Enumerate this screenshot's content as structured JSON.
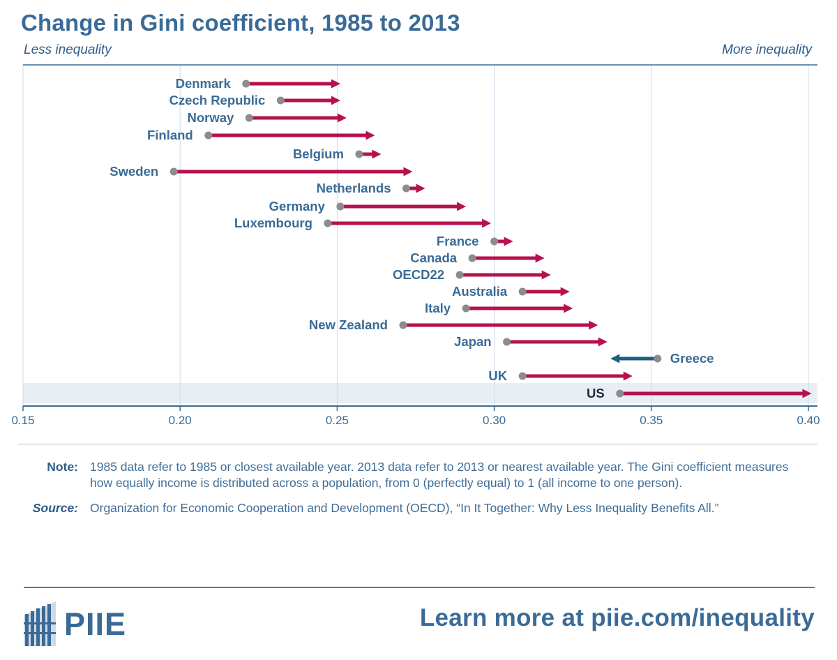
{
  "header": {
    "title": "Change in Gini coefficient, 1985 to 2013",
    "left_label": "Less inequality",
    "right_label": "More inequality"
  },
  "chart_data": {
    "type": "dumbbell-arrow",
    "title": "Change in Gini coefficient, 1985 to 2013",
    "xlabel": "",
    "ylabel": "",
    "xlim": [
      0.15,
      0.4
    ],
    "xticks": [
      0.15,
      0.2,
      0.25,
      0.3,
      0.35,
      0.4
    ],
    "xtick_labels": [
      "0.15",
      "0.20",
      "0.25",
      "0.30",
      "0.35",
      "0.40"
    ],
    "grid": true,
    "series": [
      {
        "name": "Denmark",
        "start_1985": 0.221,
        "end_2013": 0.251,
        "label_side": "left",
        "highlight": false
      },
      {
        "name": "Czech Republic",
        "start_1985": 0.232,
        "end_2013": 0.251,
        "label_side": "left",
        "highlight": false
      },
      {
        "name": "Norway",
        "start_1985": 0.222,
        "end_2013": 0.253,
        "label_side": "left",
        "highlight": false
      },
      {
        "name": "Finland",
        "start_1985": 0.209,
        "end_2013": 0.262,
        "label_side": "left",
        "highlight": false
      },
      {
        "name": "Belgium",
        "start_1985": 0.257,
        "end_2013": 0.264,
        "label_side": "left",
        "highlight": false
      },
      {
        "name": "Sweden",
        "start_1985": 0.198,
        "end_2013": 0.274,
        "label_side": "left",
        "highlight": false
      },
      {
        "name": "Netherlands",
        "start_1985": 0.272,
        "end_2013": 0.278,
        "label_side": "left",
        "highlight": false
      },
      {
        "name": "Germany",
        "start_1985": 0.251,
        "end_2013": 0.291,
        "label_side": "left",
        "highlight": false
      },
      {
        "name": "Luxembourg",
        "start_1985": 0.247,
        "end_2013": 0.299,
        "label_side": "left",
        "highlight": false
      },
      {
        "name": "France",
        "start_1985": 0.3,
        "end_2013": 0.306,
        "label_side": "left",
        "highlight": false
      },
      {
        "name": "Canada",
        "start_1985": 0.293,
        "end_2013": 0.316,
        "label_side": "left",
        "highlight": false
      },
      {
        "name": "OECD22",
        "start_1985": 0.289,
        "end_2013": 0.318,
        "label_side": "left",
        "highlight": false
      },
      {
        "name": "Australia",
        "start_1985": 0.309,
        "end_2013": 0.324,
        "label_side": "left",
        "highlight": false
      },
      {
        "name": "Italy",
        "start_1985": 0.291,
        "end_2013": 0.325,
        "label_side": "left",
        "highlight": false
      },
      {
        "name": "New Zealand",
        "start_1985": 0.271,
        "end_2013": 0.333,
        "label_side": "left",
        "highlight": false
      },
      {
        "name": "Japan",
        "start_1985": 0.304,
        "end_2013": 0.336,
        "label_side": "left",
        "highlight": false
      },
      {
        "name": "Greece",
        "start_1985": 0.352,
        "end_2013": 0.337,
        "label_side": "right",
        "highlight": false
      },
      {
        "name": "UK",
        "start_1985": 0.309,
        "end_2013": 0.344,
        "label_side": "left",
        "highlight": false
      },
      {
        "name": "US",
        "start_1985": 0.34,
        "end_2013": 0.401,
        "label_side": "left",
        "highlight": true
      }
    ],
    "colors": {
      "increase": "#b5104f",
      "decrease": "#1e5f86",
      "dot": "#8c8c8c",
      "label": "#3a6b96",
      "highlight_label": "#1d2a38",
      "highlight_band": "#e8eef4",
      "grid": "#ccdbe8",
      "axis": "#3a6b96"
    }
  },
  "notes": {
    "note_label": "Note:",
    "note_text": "1985 data refer to 1985 or closest available year. 2013 data refer to 2013 or nearest available year. The Gini coefficient measures how equally income is distributed across a population, from 0 (perfectly equal) to 1 (all income to one person).",
    "source_label": "Source:",
    "source_text": "Organization for Economic Cooperation and Development (OECD), “In It Together: Why Less Inequality Benefits All.”"
  },
  "footer": {
    "logo_text": "PIIE",
    "logo_icon": "piie-building-icon",
    "learn_more": "Learn more at piie.com/inequality",
    "brand_color": "#3a6b96"
  }
}
